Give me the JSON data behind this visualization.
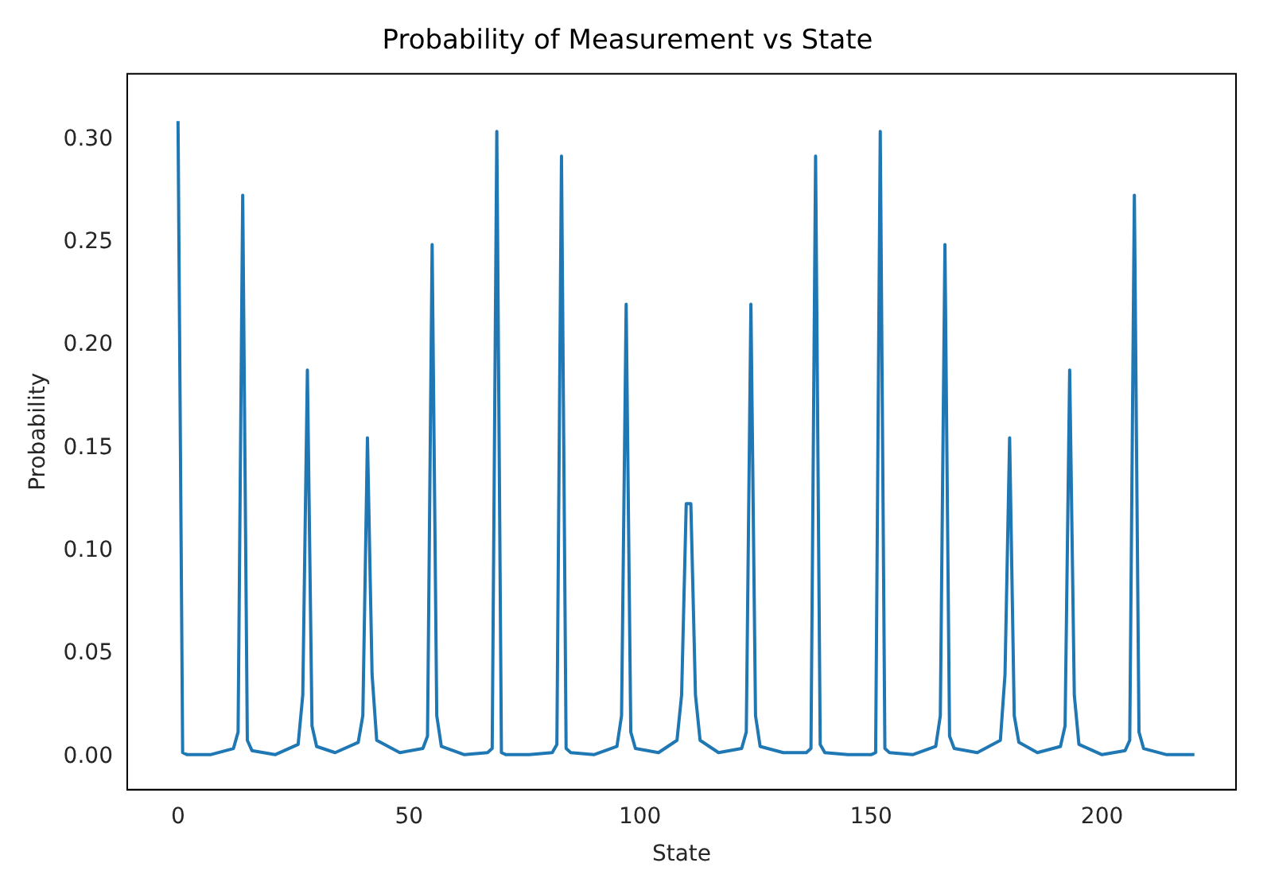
{
  "chart_data": {
    "type": "line",
    "title": "Probability of Measurement vs State",
    "xlabel": "State",
    "ylabel": "Probability",
    "x": [
      0,
      1,
      2,
      7,
      12,
      13,
      14,
      15,
      16,
      21,
      26,
      27,
      28,
      29,
      30,
      34,
      39,
      40,
      41,
      42,
      43,
      48,
      53,
      54,
      55,
      56,
      57,
      62,
      67,
      68,
      69,
      70,
      71,
      76,
      81,
      82,
      83,
      84,
      85,
      90,
      95,
      96,
      97,
      98,
      99,
      104,
      108,
      109,
      110,
      111,
      112,
      113,
      117,
      122,
      123,
      124,
      125,
      126,
      131,
      136,
      137,
      138,
      139,
      140,
      145,
      150,
      151,
      152,
      153,
      154,
      159,
      164,
      165,
      166,
      167,
      168,
      173,
      178,
      179,
      180,
      181,
      182,
      186,
      191,
      192,
      193,
      194,
      195,
      200,
      205,
      206,
      207,
      208,
      209,
      214,
      220
    ],
    "series": [
      {
        "color": "#1f77b4",
        "values": [
          0.309,
          0.002,
          0.001,
          0.001,
          0.004,
          0.012,
          0.273,
          0.008,
          0.003,
          0.001,
          0.006,
          0.03,
          0.188,
          0.015,
          0.005,
          0.002,
          0.007,
          0.02,
          0.155,
          0.04,
          0.008,
          0.002,
          0.004,
          0.01,
          0.249,
          0.02,
          0.005,
          0.001,
          0.002,
          0.004,
          0.304,
          0.002,
          0.001,
          0.001,
          0.002,
          0.006,
          0.292,
          0.004,
          0.002,
          0.001,
          0.005,
          0.02,
          0.22,
          0.012,
          0.004,
          0.002,
          0.008,
          0.03,
          0.123,
          0.123,
          0.03,
          0.008,
          0.002,
          0.004,
          0.012,
          0.22,
          0.02,
          0.005,
          0.002,
          0.002,
          0.004,
          0.292,
          0.006,
          0.002,
          0.001,
          0.001,
          0.002,
          0.304,
          0.004,
          0.002,
          0.001,
          0.005,
          0.02,
          0.249,
          0.01,
          0.004,
          0.002,
          0.008,
          0.04,
          0.155,
          0.02,
          0.007,
          0.002,
          0.005,
          0.015,
          0.188,
          0.03,
          0.006,
          0.001,
          0.003,
          0.008,
          0.273,
          0.012,
          0.004,
          0.001,
          0.001
        ]
      }
    ],
    "xlim": [
      -11,
      229
    ],
    "xticks": [
      0,
      50,
      100,
      150,
      200
    ],
    "ylim": [
      -0.016,
      0.332
    ],
    "yticks": [
      {
        "value": 0,
        "label": "0.00"
      },
      {
        "value": 0.05,
        "label": "0.05"
      },
      {
        "value": 0.1,
        "label": "0.10"
      },
      {
        "value": 0.15,
        "label": "0.15"
      },
      {
        "value": 0.2,
        "label": "0.20"
      },
      {
        "value": 0.25,
        "label": "0.25"
      },
      {
        "value": 0.3,
        "label": "0.30"
      }
    ]
  }
}
